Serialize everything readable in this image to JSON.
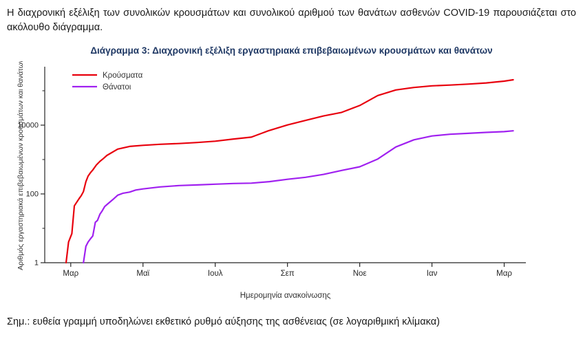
{
  "page": {
    "intro": "Η διαχρονική εξέλιξη των συνολικών κρουσμάτων και συνολικού αριθμού των θανάτων ασθενών COVID-19 παρουσιάζεται στο ακόλουθο διάγραμμα.",
    "note": "Σημ.: ευθεία γραμμή υποδηλώνει εκθετικό ρυθμό αύξησης της ασθένειας (σε λογαριθμική κλίμακα)"
  },
  "colors": {
    "title": "#1f3864",
    "text": "#1a1a1a",
    "axis": "#262626",
    "cases_line": "#e8000d",
    "deaths_line": "#a020f0"
  },
  "chart_data": {
    "type": "line",
    "title": "Διάγραμμα 3: Διαχρονική εξέλιξη εργαστηριακά επιβεβαιωμένων κρουσμάτων και θανάτων",
    "xlabel": "Ημερομηνία ανακοίνωσης",
    "ylabel": "Αριθμός εργαστηριακά επιβεβαιωμένων κρουσμάτων και θανάτων",
    "y_scale": "log",
    "ylim": [
      1,
      500000
    ],
    "y_major_ticks": [
      1,
      100,
      10000
    ],
    "y_minor_ticks": [
      10,
      1000,
      100000
    ],
    "x_tick_labels": [
      "Μαρ",
      "Μαϊ",
      "Ιουλ",
      "Σεπ",
      "Νοε",
      "Ιαν",
      "Μαρ"
    ],
    "x_tick_months": [
      0,
      2,
      4,
      6,
      8,
      10,
      12
    ],
    "xlim_months": [
      -0.72,
      12.6
    ],
    "grid": false,
    "legend_position": "top-left",
    "series": [
      {
        "name": "Κρούσματα",
        "color": "#e8000d",
        "points": [
          [
            -0.13,
            1
          ],
          [
            -0.06,
            4
          ],
          [
            0.03,
            7
          ],
          [
            0.1,
            45
          ],
          [
            0.23,
            73
          ],
          [
            0.29,
            89
          ],
          [
            0.35,
            117
          ],
          [
            0.42,
            228
          ],
          [
            0.48,
            331
          ],
          [
            0.55,
            418
          ],
          [
            0.61,
            495
          ],
          [
            0.71,
            695
          ],
          [
            0.81,
            892
          ],
          [
            0.9,
            1061
          ],
          [
            1.0,
            1314
          ],
          [
            1.3,
            2011
          ],
          [
            1.63,
            2401
          ],
          [
            2.0,
            2591
          ],
          [
            2.47,
            2770
          ],
          [
            3.0,
            2917
          ],
          [
            3.5,
            3134
          ],
          [
            4.0,
            3409
          ],
          [
            4.47,
            3910
          ],
          [
            5.0,
            4477
          ],
          [
            5.47,
            6858
          ],
          [
            6.0,
            10134
          ],
          [
            6.5,
            13730
          ],
          [
            7.0,
            18475
          ],
          [
            7.5,
            23495
          ],
          [
            8.0,
            37196
          ],
          [
            8.5,
            72510
          ],
          [
            9.0,
            105271
          ],
          [
            9.5,
            124534
          ],
          [
            10.0,
            138850
          ],
          [
            10.5,
            146020
          ],
          [
            11.0,
            155678
          ],
          [
            11.5,
            168896
          ],
          [
            12.0,
            190235
          ],
          [
            12.25,
            208073
          ]
        ]
      },
      {
        "name": "Θάνατοι",
        "color": "#a020f0",
        "points": [
          [
            0.35,
            1
          ],
          [
            0.42,
            3
          ],
          [
            0.48,
            4
          ],
          [
            0.55,
            5
          ],
          [
            0.61,
            6
          ],
          [
            0.68,
            15
          ],
          [
            0.74,
            17
          ],
          [
            0.81,
            26
          ],
          [
            0.87,
            32
          ],
          [
            0.94,
            43
          ],
          [
            1.0,
            49
          ],
          [
            1.16,
            68
          ],
          [
            1.3,
            92
          ],
          [
            1.45,
            105
          ],
          [
            1.63,
            113
          ],
          [
            1.8,
            130
          ],
          [
            2.0,
            140
          ],
          [
            2.47,
            160
          ],
          [
            3.0,
            175
          ],
          [
            3.5,
            183
          ],
          [
            4.0,
            192
          ],
          [
            4.5,
            201
          ],
          [
            5.0,
            206
          ],
          [
            5.5,
            228
          ],
          [
            6.0,
            266
          ],
          [
            6.5,
            305
          ],
          [
            7.0,
            369
          ],
          [
            7.5,
            482
          ],
          [
            8.0,
            615
          ],
          [
            8.5,
            1035
          ],
          [
            9.0,
            2321
          ],
          [
            9.5,
            3740
          ],
          [
            10.0,
            4838
          ],
          [
            10.5,
            5441
          ],
          [
            11.0,
            5764
          ],
          [
            11.5,
            6152
          ],
          [
            12.0,
            6468
          ],
          [
            12.25,
            6843
          ]
        ]
      }
    ]
  }
}
